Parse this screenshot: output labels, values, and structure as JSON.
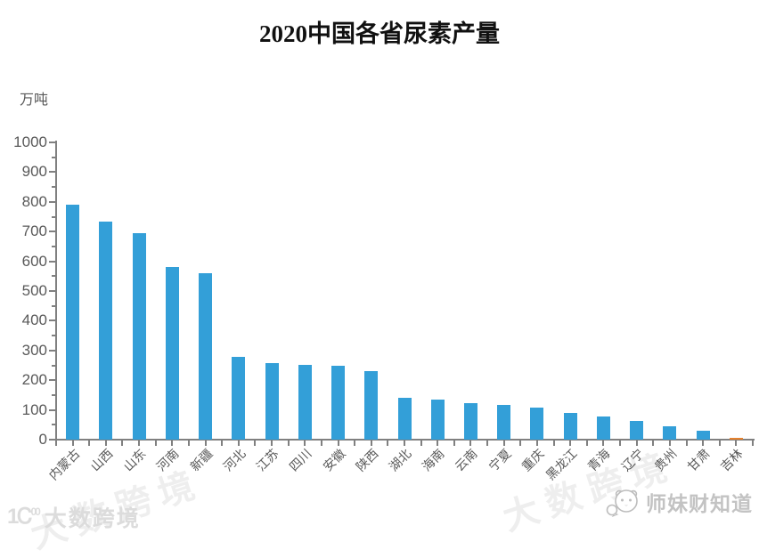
{
  "title": "2020中国各省尿素产量",
  "y_unit_label": "万吨",
  "chart_data": {
    "type": "bar",
    "title": "2020中国各省尿素产量",
    "xlabel": "",
    "ylabel": "万吨",
    "categories": [
      "内蒙古",
      "山西",
      "山东",
      "河南",
      "新疆",
      "河北",
      "江苏",
      "四川",
      "安徽",
      "陕西",
      "湖北",
      "海南",
      "云南",
      "宁夏",
      "重庆",
      "黑龙江",
      "青海",
      "辽宁",
      "贵州",
      "甘肃",
      "吉林"
    ],
    "values": [
      790,
      735,
      695,
      580,
      560,
      278,
      257,
      252,
      248,
      230,
      140,
      134,
      124,
      117,
      108,
      91,
      79,
      64,
      46,
      30,
      6
    ],
    "ylim": [
      0,
      1000
    ],
    "ytick_step": 100,
    "yticks": [
      0,
      100,
      200,
      300,
      400,
      500,
      600,
      700,
      800,
      900,
      1000
    ],
    "minor_tick_step": 50,
    "grid": false,
    "legend_position": "none",
    "bar_color": "#339fd8",
    "last_bar_color": "#e5812e",
    "axis_color": "#808080",
    "tick_label_color": "#595959"
  },
  "watermarks": {
    "bottom_left": {
      "icon": "k100-logo-icon",
      "text": "大数跨境"
    },
    "bottom_right": {
      "icon": "panda-chat-icon",
      "text": "师妹财知道"
    },
    "diagonal_text": "大数跨境"
  }
}
